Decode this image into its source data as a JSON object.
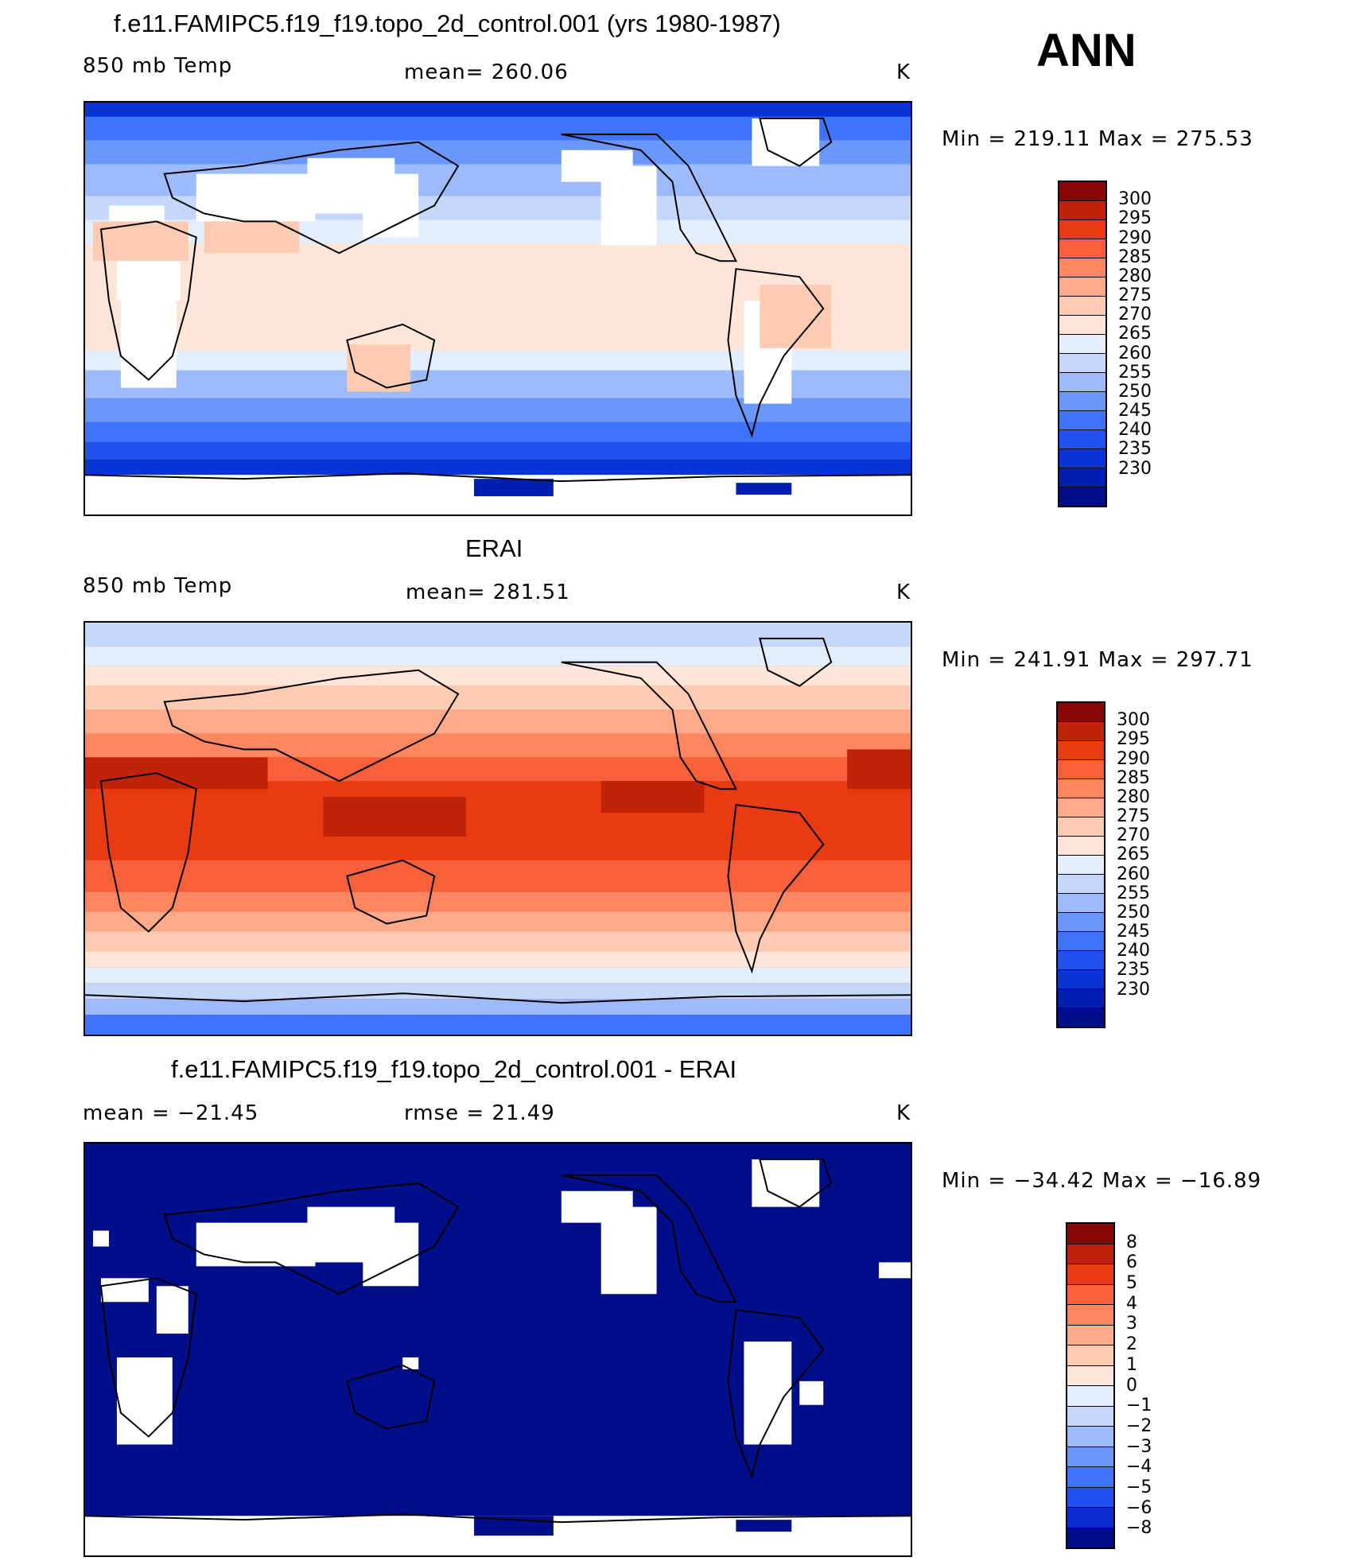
{
  "season": "ANN",
  "palette": {
    "full": [
      "#000e8a",
      "#001fb0",
      "#0a35d6",
      "#1f52f0",
      "#3e74fb",
      "#6a97fb",
      "#9dbafb",
      "#c5d8fb",
      "#e3eefc",
      "#fde6d8",
      "#fccbb2",
      "#fcaa88",
      "#fc8660",
      "#f7603a",
      "#e83b13",
      "#c02309",
      "#8a0505"
    ],
    "diff": [
      "#000e8a",
      "#0a2ad0",
      "#1f52f0",
      "#3e74fb",
      "#6a97fb",
      "#9dbafb",
      "#c5d8fb",
      "#e3eefc",
      "#fde6d8",
      "#fccbb2",
      "#fcaa88",
      "#fc8660",
      "#f7603a",
      "#e83b13",
      "#c02309",
      "#8a0505"
    ]
  },
  "panels": [
    {
      "title": "f.e11.FAMIPC5.f19_f19.topo_2d_control.001 (yrs 1980-1987)",
      "left_label": "850 mb Temp",
      "center_label": "mean= 260.06",
      "units": "K",
      "minmax": "Min = 219.11 Max = 275.53",
      "colorbar_labels": [
        "300",
        "295",
        "290",
        "285",
        "280",
        "275",
        "270",
        "265",
        "260",
        "255",
        "250",
        "245",
        "240",
        "235",
        "230"
      ]
    },
    {
      "title": "ERAI",
      "left_label": "850 mb Temp",
      "center_label": "mean= 281.51",
      "units": "K",
      "minmax": "Min = 241.91 Max = 297.71",
      "colorbar_labels": [
        "300",
        "295",
        "290",
        "285",
        "280",
        "275",
        "270",
        "265",
        "260",
        "255",
        "250",
        "245",
        "240",
        "235",
        "230"
      ]
    },
    {
      "title": "f.e11.FAMIPC5.f19_f19.topo_2d_control.001 - ERAI",
      "left_label": "mean = −21.45",
      "center_label": "rmse =  21.49",
      "units": "K",
      "minmax": "Min = −34.42 Max = −16.89",
      "colorbar_labels": [
        "8",
        "6",
        "5",
        "4",
        "3",
        "2",
        "1",
        "0",
        "−1",
        "−2",
        "−3",
        "−4",
        "−5",
        "−6",
        "−8"
      ]
    }
  ]
}
